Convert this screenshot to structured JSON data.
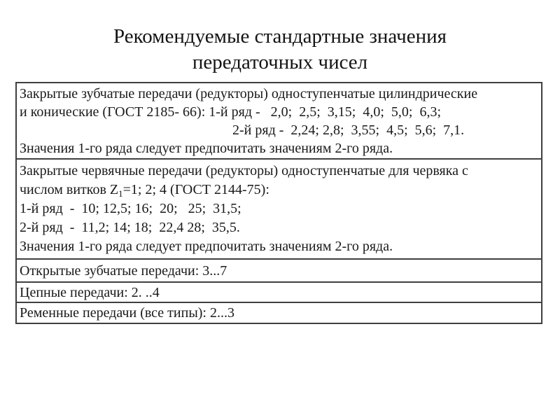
{
  "title": {
    "line1": "Рекомендуемые стандартные значения",
    "line2": "передаточных чисел"
  },
  "colors": {
    "background": "#ffffff",
    "text": "#1a1a1a",
    "border": "#3f3f3f"
  },
  "table": {
    "rows": [
      {
        "name": "closed-gear-drives",
        "lines": [
          "Закрытые зубчатые передачи (редукторы) одноступенчатые цилиндрические",
          "и конические (ГОСТ 2185- 66): 1-й ряд -   2,0;  2,5;  3,15;  4,0;  5,0;  6,3;",
          "2-й ряд -  2,24; 2,8;  3,55;  4,5;  5,6;  7,1.",
          "Значения 1-го ряда следует предпочитать значениям 2-го ряда."
        ]
      },
      {
        "name": "closed-worm-drives",
        "lines": [
          "Закрытые червячные передачи (редукторы) одноступенчатые для червяка с",
          {
            "pre": "числом витков Z",
            "sub": "1",
            "post": "=1; 2; 4 (ГОСТ 2144-75):"
          },
          "1-й ряд  -  10; 12,5; 16;  20;   25;  31,5;",
          "2-й ряд  -  11,2; 14; 18;  22,4 28;  35,5.",
          "Значения 1-го ряда следует предпочитать значениям 2-го ряда."
        ]
      },
      {
        "name": "open-gear-drives",
        "lines": [
          "Открытые зубчатые передачи: 3...7"
        ]
      },
      {
        "name": "chain-drives",
        "lines": [
          "Цепные передачи: 2. ..4"
        ]
      },
      {
        "name": "belt-drives",
        "lines": [
          "Ременные передачи (все типы): 2...3"
        ]
      }
    ]
  }
}
